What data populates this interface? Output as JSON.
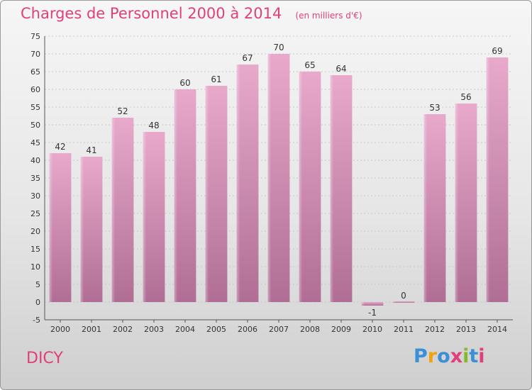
{
  "header": {
    "title": "Charges de Personnel 2000 à 2014",
    "subtitle": "(en milliers d'€)"
  },
  "commune": "DICY",
  "logo": {
    "letters": [
      {
        "ch": "P",
        "color": "#3a8fd6"
      },
      {
        "ch": "r",
        "color": "#f2a20d"
      },
      {
        "ch": "o",
        "color": "#3a8fd6"
      },
      {
        "ch": "x",
        "color": "#e0407a"
      },
      {
        "ch": "i",
        "color": "#86b92a"
      },
      {
        "ch": "t",
        "color": "#3a8fd6"
      },
      {
        "ch": "i",
        "color": "#e0407a"
      }
    ]
  },
  "chart_data": {
    "type": "bar",
    "categories": [
      "2000",
      "2001",
      "2002",
      "2003",
      "2004",
      "2005",
      "2006",
      "2007",
      "2008",
      "2009",
      "2010",
      "2011",
      "2012",
      "2013",
      "2014"
    ],
    "values": [
      42,
      41,
      52,
      48,
      60,
      61,
      67,
      70,
      65,
      64,
      -1,
      0,
      53,
      56,
      69
    ],
    "data_labels": [
      "42",
      "41",
      "52",
      "48",
      "60",
      "61",
      "67",
      "70",
      "65",
      "64",
      "-1",
      "0",
      "53",
      "56",
      "69"
    ],
    "title": "Charges de Personnel 2000 à 2014",
    "ylim": [
      -5,
      75
    ],
    "yticks": [
      -5,
      0,
      5,
      10,
      15,
      20,
      25,
      30,
      35,
      40,
      45,
      50,
      55,
      60,
      65,
      70,
      75
    ],
    "grid": true,
    "bar_color": "#d98fb6"
  }
}
